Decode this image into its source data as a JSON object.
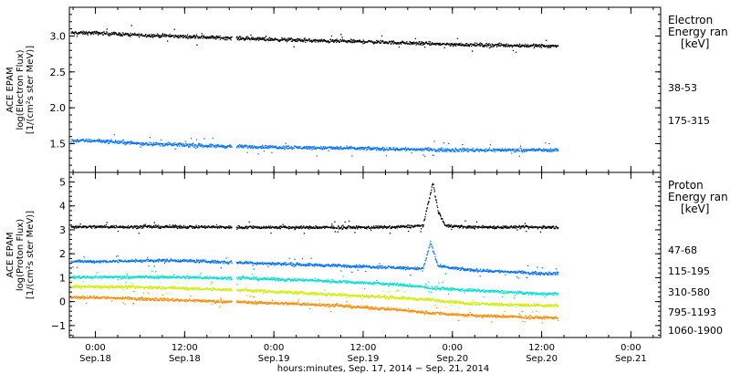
{
  "chart_data": [
    {
      "type": "scatter",
      "panel": "electron",
      "ylabel": [
        "ACE EPAM",
        "log(Electron Flux)",
        "[1/(cm²s ster MeV)]"
      ],
      "ylim": [
        1.1,
        3.4
      ],
      "yticks": [
        1.5,
        2.0,
        2.5,
        3.0
      ],
      "ytick_labels": [
        "1.5",
        "2.0",
        "2.5",
        "3.0"
      ],
      "legend_title": [
        "Electron",
        "Energy ran",
        "[keV]"
      ],
      "series": [
        {
          "name": "38-53",
          "color": "#000000",
          "x": [
            0,
            6,
            12,
            18,
            24,
            30,
            36,
            42,
            48,
            54,
            60
          ],
          "y": [
            3.05,
            3.02,
            3.0,
            2.98,
            2.96,
            2.94,
            2.93,
            2.91,
            2.89,
            2.88,
            2.87
          ]
        },
        {
          "name": "175-315",
          "color": "#0070ff",
          "x": [
            0,
            6,
            12,
            18,
            24,
            30,
            36,
            42,
            48,
            54,
            60
          ],
          "y": [
            1.55,
            1.51,
            1.49,
            1.47,
            1.46,
            1.45,
            1.44,
            1.43,
            1.42,
            1.42,
            1.42
          ]
        }
      ]
    },
    {
      "type": "scatter",
      "panel": "proton",
      "ylabel": [
        "ACE EPAM",
        "log(Proton Flux)",
        "[1/(cm²s ster MeV)]"
      ],
      "ylim": [
        -1.5,
        5.4
      ],
      "yticks": [
        -1,
        0,
        1,
        2,
        3,
        4,
        5
      ],
      "ytick_labels": [
        "−1",
        "0",
        "1",
        "2",
        "3",
        "4",
        "5"
      ],
      "legend_title": [
        "Proton",
        "Energy ran",
        "[keV]"
      ],
      "series": [
        {
          "name": "47-68",
          "color": "#000000",
          "x": [
            0,
            10,
            20,
            30,
            40,
            44,
            44.8,
            45.3,
            46,
            47,
            50,
            60
          ],
          "y": [
            3.15,
            3.15,
            3.13,
            3.12,
            3.13,
            3.2,
            4.3,
            5.0,
            3.8,
            3.2,
            3.14,
            3.13
          ]
        },
        {
          "name": "115-195",
          "color": "#0070ff",
          "x": [
            0,
            10,
            20,
            30,
            40,
            44,
            45,
            46,
            50,
            60
          ],
          "y": [
            1.7,
            1.75,
            1.65,
            1.55,
            1.45,
            1.4,
            2.5,
            1.5,
            1.35,
            1.2
          ]
        },
        {
          "name": "310-580",
          "color": "#00e0d0",
          "x": [
            0,
            10,
            20,
            30,
            40,
            45,
            50,
            60
          ],
          "y": [
            1.05,
            1.05,
            1.0,
            0.9,
            0.75,
            0.6,
            0.5,
            0.35
          ]
        },
        {
          "name": "795-1193",
          "color": "#d0ee00",
          "x": [
            0,
            10,
            20,
            30,
            40,
            45,
            50,
            60
          ],
          "y": [
            0.65,
            0.6,
            0.5,
            0.35,
            0.2,
            0.1,
            -0.05,
            -0.15
          ]
        },
        {
          "name": "1060-1900",
          "color": "#ff8c00",
          "x": [
            0,
            10,
            20,
            30,
            40,
            45,
            50,
            60
          ],
          "y": [
            0.2,
            0.1,
            0.0,
            -0.1,
            -0.3,
            -0.45,
            -0.55,
            -0.65
          ]
        }
      ]
    }
  ],
  "x_axis": {
    "xlabel": "hours:minutes, Sep. 17, 2014 − Sep. 21, 2014",
    "xlim": [
      -3.5,
      76
    ],
    "gap": [
      18.3,
      18.9
    ],
    "ticks": [
      {
        "x": 0,
        "time": "0:00",
        "date": "Sep.18"
      },
      {
        "x": 12,
        "time": "12:00",
        "date": "Sep.18"
      },
      {
        "x": 24,
        "time": "0:00",
        "date": "Sep.19"
      },
      {
        "x": 36,
        "time": "12:00",
        "date": "Sep.19"
      },
      {
        "x": 48,
        "time": "0:00",
        "date": "Sep.20"
      },
      {
        "x": 60,
        "time": "12:00",
        "date": "Sep.20"
      },
      {
        "x": 72,
        "time": "0:00",
        "date": "Sep.21"
      }
    ]
  }
}
